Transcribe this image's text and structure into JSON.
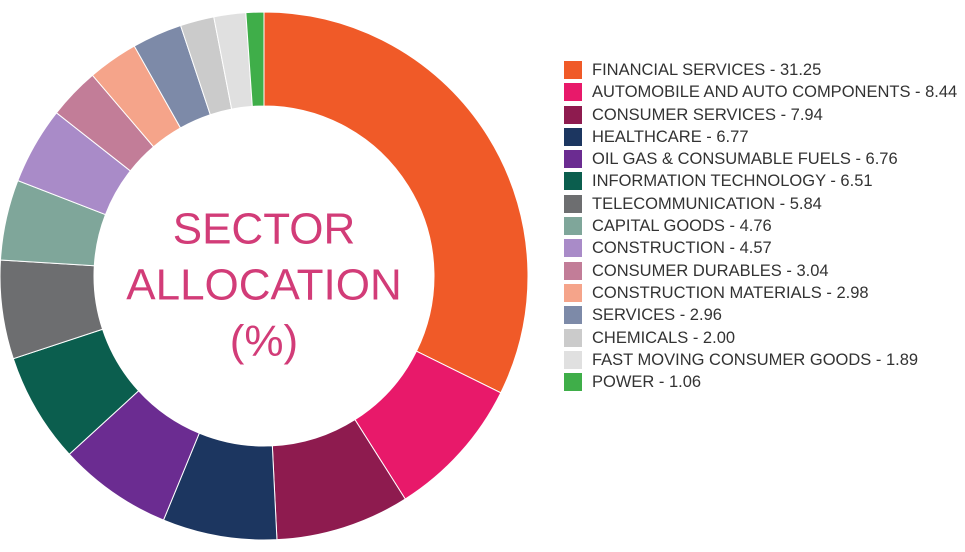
{
  "chart_data": {
    "type": "donut",
    "title_lines": [
      "SECTOR",
      "ALLOCATION",
      "(%)"
    ],
    "categories": [
      "FINANCIAL SERVICES - 31.25",
      "AUTOMOBILE AND AUTO COMPONENTS - 8.44",
      "CONSUMER SERVICES - 7.94",
      "HEALTHCARE - 6.77",
      "OIL GAS & CONSUMABLE FUELS - 6.76",
      "INFORMATION TECHNOLOGY - 6.51",
      "TELECOMMUNICATION - 5.84",
      "CAPITAL GOODS - 4.76",
      "CONSTRUCTION - 4.57",
      "CONSUMER DURABLES - 3.04",
      "CONSTRUCTION MATERIALS - 2.98",
      "SERVICES - 2.96",
      "CHEMICALS - 2.00",
      "FAST MOVING CONSUMER GOODS - 1.89",
      "POWER - 1.06"
    ],
    "values": [
      31.25,
      8.44,
      7.94,
      6.77,
      6.76,
      6.51,
      5.84,
      4.76,
      4.57,
      3.04,
      2.98,
      2.96,
      2.0,
      1.89,
      1.06
    ],
    "colors": [
      "#f05a28",
      "#e8196a",
      "#8e1b4f",
      "#1c3660",
      "#6b2c91",
      "#0b5e4e",
      "#6d6e70",
      "#7fa69a",
      "#a98bc8",
      "#c27d98",
      "#f5a48a",
      "#7d8aa8",
      "#cbcbcb",
      "#e0e0e0",
      "#3fae49"
    ]
  }
}
